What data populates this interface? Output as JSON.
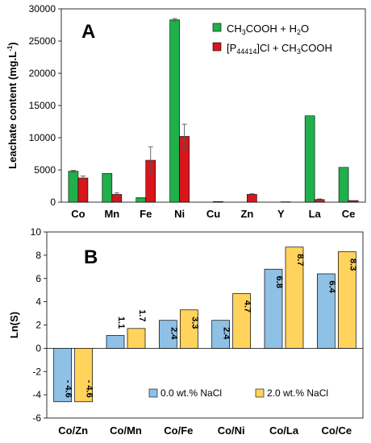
{
  "chart_data": [
    {
      "panel": "A",
      "type": "bar",
      "ylabel": "Leachate content (mg.L",
      "ylabel_sup": "-1",
      "ylabel_close": ")",
      "ylim": [
        0,
        30000
      ],
      "yticks": [
        "0",
        "5000",
        "10000",
        "15000",
        "20000",
        "25000",
        "30000"
      ],
      "categories": [
        "Co",
        "Mn",
        "Fe",
        "Ni",
        "Cu",
        "Zn",
        "Y",
        "La",
        "Ce"
      ],
      "series": [
        {
          "name": "CH3COOH + H2O",
          "name_parts": [
            "CH",
            "3",
            "COOH + H",
            "2",
            "O"
          ],
          "color": "#1fb04b",
          "values": [
            4800,
            4450,
            700,
            28300,
            0,
            0,
            0,
            13400,
            5400
          ],
          "errors": [
            150,
            0,
            0,
            200,
            0,
            0,
            0,
            0,
            0
          ]
        },
        {
          "name": "[P44414]Cl + CH3COOH",
          "name_parts": [
            "[P",
            "44414",
            "]Cl + CH",
            "3",
            "COOH"
          ],
          "color": "#d9151b",
          "values": [
            3750,
            1200,
            6500,
            10200,
            100,
            1200,
            50,
            400,
            250
          ],
          "errors": [
            300,
            250,
            2100,
            1900,
            0,
            100,
            0,
            100,
            0
          ]
        }
      ]
    },
    {
      "panel": "B",
      "type": "bar",
      "ylabel": "Ln(S)",
      "ylim": [
        -6,
        10
      ],
      "yticks": [
        "-6",
        "-4",
        "-2",
        "0",
        "2",
        "4",
        "6",
        "8",
        "10"
      ],
      "categories": [
        "Co/Zn",
        "Co/Mn",
        "Co/Fe",
        "Co/Ni",
        "Co/La",
        "Co/Ce"
      ],
      "series": [
        {
          "name": "0.0 wt.% NaCl",
          "color": "#8fc0e6",
          "values": [
            -4.6,
            1.1,
            2.4,
            2.4,
            6.8,
            6.4
          ],
          "labels": [
            "- 4.6",
            "1.1",
            "2.4",
            "2.4",
            "6.8",
            "6.4"
          ]
        },
        {
          "name": "2.0 wt.% NaCl",
          "color": "#ffd35c",
          "values": [
            -4.6,
            1.7,
            3.3,
            4.7,
            8.7,
            8.3
          ],
          "labels": [
            "- 4.6",
            "1.7",
            "3.3",
            "4.7",
            "8.7",
            "8.3"
          ]
        }
      ]
    }
  ]
}
